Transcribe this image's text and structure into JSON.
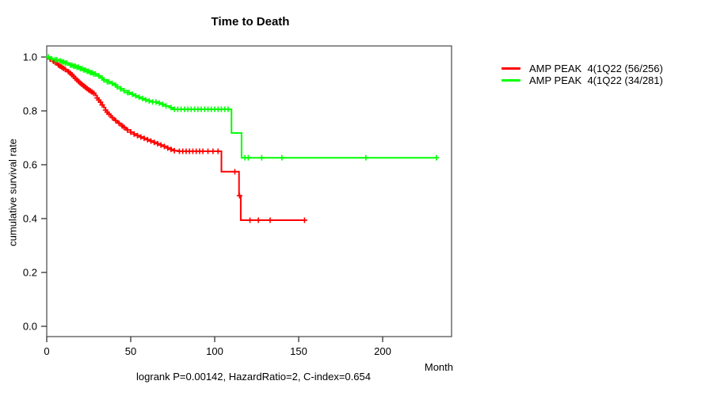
{
  "title": "Time to Death",
  "caption": "logrank P=0.00142, HazardRatio=2, C-index=0.654",
  "axes": {
    "y_label": "cumulative survival rate",
    "x_label": "Month"
  },
  "colors": {
    "series_red": "#ff0000",
    "series_green": "#00ff00",
    "axis": "#555555",
    "tick": "#333333",
    "text": "#000000"
  },
  "legend": [
    {
      "label": "AMP PEAK  4(1Q22 (56/256)",
      "color": "#ff0000"
    },
    {
      "label": "AMP PEAK  4(1Q22 (34/281)",
      "color": "#00ff00"
    }
  ],
  "chart_data": {
    "type": "line",
    "subtype": "kaplan-meier-step",
    "title": "Time to Death",
    "xlabel": "Month",
    "ylabel": "cumulative survival rate",
    "xlim": [
      0,
      241
    ],
    "ylim": [
      0.0,
      1.0
    ],
    "x_ticks": [
      0,
      50,
      100,
      150,
      200
    ],
    "y_ticks": [
      0.0,
      0.2,
      0.4,
      0.6,
      0.8,
      1.0
    ],
    "grid": false,
    "legend_position": "right-outside",
    "annotation": "logrank P=0.00142, HazardRatio=2, C-index=0.654",
    "series": [
      {
        "name": "AMP PEAK  4(1Q22 (56/256)",
        "events": 56,
        "n": 256,
        "color": "#ff0000",
        "end_month": 154,
        "steps": [
          [
            0,
            1.0
          ],
          [
            1,
            0.996
          ],
          [
            2,
            0.992
          ],
          [
            3,
            0.988
          ],
          [
            4,
            0.984
          ],
          [
            5,
            0.98
          ],
          [
            6,
            0.975
          ],
          [
            7,
            0.97
          ],
          [
            8,
            0.966
          ],
          [
            9,
            0.962
          ],
          [
            10,
            0.958
          ],
          [
            11,
            0.954
          ],
          [
            12,
            0.95
          ],
          [
            13,
            0.945
          ],
          [
            14,
            0.94
          ],
          [
            15,
            0.934
          ],
          [
            16,
            0.928
          ],
          [
            17,
            0.921
          ],
          [
            18,
            0.915
          ],
          [
            19,
            0.909
          ],
          [
            20,
            0.903
          ],
          [
            21,
            0.898
          ],
          [
            22,
            0.893
          ],
          [
            23,
            0.888
          ],
          [
            24,
            0.883
          ],
          [
            25,
            0.878
          ],
          [
            26,
            0.874
          ],
          [
            27,
            0.87
          ],
          [
            28,
            0.865
          ],
          [
            29,
            0.857
          ],
          [
            30,
            0.848
          ],
          [
            31,
            0.84
          ],
          [
            32,
            0.832
          ],
          [
            33,
            0.822
          ],
          [
            34,
            0.812
          ],
          [
            35,
            0.803
          ],
          [
            36,
            0.795
          ],
          [
            37,
            0.788
          ],
          [
            38,
            0.781
          ],
          [
            39,
            0.775
          ],
          [
            40,
            0.769
          ],
          [
            41,
            0.764
          ],
          [
            42,
            0.759
          ],
          [
            43,
            0.754
          ],
          [
            44,
            0.749
          ],
          [
            45,
            0.744
          ],
          [
            46,
            0.739
          ],
          [
            47,
            0.734
          ],
          [
            48,
            0.729
          ],
          [
            50,
            0.721
          ],
          [
            52,
            0.714
          ],
          [
            54,
            0.708
          ],
          [
            56,
            0.703
          ],
          [
            58,
            0.698
          ],
          [
            60,
            0.693
          ],
          [
            62,
            0.688
          ],
          [
            64,
            0.683
          ],
          [
            66,
            0.678
          ],
          [
            68,
            0.673
          ],
          [
            70,
            0.668
          ],
          [
            72,
            0.662
          ],
          [
            74,
            0.657
          ],
          [
            76,
            0.652
          ],
          [
            78,
            0.65
          ],
          [
            104,
            0.574
          ],
          [
            114.5,
            0.485
          ],
          [
            115.5,
            0.394
          ]
        ],
        "censor_months": [
          2,
          4,
          5,
          7,
          8,
          9,
          10,
          11,
          13,
          14,
          15,
          16,
          17,
          18,
          19,
          20,
          21,
          22,
          23,
          24,
          25,
          26,
          27,
          28,
          30,
          31,
          32,
          33,
          35,
          36,
          37,
          39,
          41,
          43,
          45,
          46,
          48,
          50,
          52,
          54,
          56,
          58,
          60,
          62,
          64,
          66,
          68,
          70,
          72,
          74,
          76,
          79,
          81,
          83,
          85,
          87,
          89,
          91,
          93,
          96,
          99,
          102,
          112,
          114.8,
          121,
          126,
          133,
          153.5
        ]
      },
      {
        "name": "AMP PEAK  4(1Q22 (34/281)",
        "events": 34,
        "n": 281,
        "color": "#00ff00",
        "end_month": 232,
        "steps": [
          [
            0,
            1.0
          ],
          [
            2,
            0.996
          ],
          [
            3,
            0.993
          ],
          [
            5,
            0.99
          ],
          [
            7,
            0.986
          ],
          [
            9,
            0.982
          ],
          [
            11,
            0.978
          ],
          [
            13,
            0.974
          ],
          [
            14,
            0.97
          ],
          [
            16,
            0.966
          ],
          [
            18,
            0.962
          ],
          [
            20,
            0.957
          ],
          [
            22,
            0.952
          ],
          [
            24,
            0.947
          ],
          [
            26,
            0.942
          ],
          [
            28,
            0.937
          ],
          [
            30,
            0.93
          ],
          [
            32,
            0.922
          ],
          [
            34,
            0.915
          ],
          [
            36,
            0.908
          ],
          [
            38,
            0.902
          ],
          [
            40,
            0.896
          ],
          [
            42,
            0.889
          ],
          [
            44,
            0.882
          ],
          [
            46,
            0.875
          ],
          [
            48,
            0.868
          ],
          [
            50,
            0.862
          ],
          [
            52,
            0.856
          ],
          [
            54,
            0.851
          ],
          [
            56,
            0.846
          ],
          [
            58,
            0.841
          ],
          [
            60,
            0.837
          ],
          [
            63,
            0.833
          ],
          [
            66,
            0.829
          ],
          [
            69,
            0.824
          ],
          [
            71,
            0.818
          ],
          [
            73,
            0.812
          ],
          [
            75,
            0.806
          ],
          [
            110,
            0.718
          ],
          [
            116,
            0.626
          ]
        ],
        "censor_months": [
          1,
          3,
          5,
          6,
          8,
          9,
          10,
          11,
          12,
          14,
          15,
          16,
          17,
          18,
          19,
          20,
          21,
          22,
          23,
          24,
          25,
          26,
          27,
          28,
          29,
          31,
          33,
          34,
          36,
          37,
          39,
          41,
          42,
          44,
          46,
          48,
          49,
          51,
          53,
          55,
          57,
          59,
          61,
          63,
          65,
          67,
          69,
          71,
          74,
          76,
          78,
          80,
          82,
          84,
          86,
          88,
          90,
          92,
          94,
          96,
          98,
          100,
          102,
          104,
          106,
          108,
          118,
          120,
          128,
          140,
          190,
          232
        ]
      }
    ]
  }
}
